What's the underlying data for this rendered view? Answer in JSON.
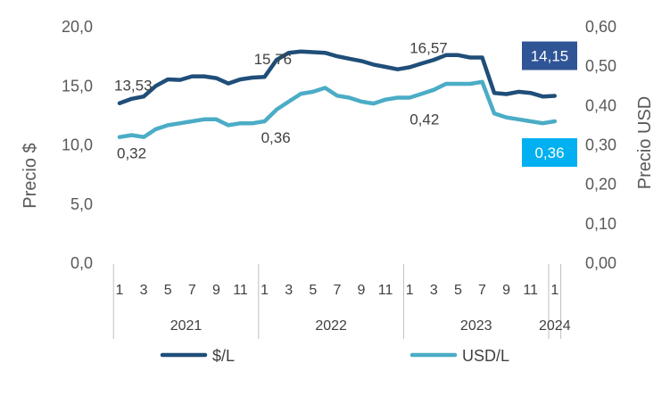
{
  "chart_data": {
    "type": "line",
    "y_left": {
      "label": "Precio $",
      "ticks": [
        "0,0",
        "5,0",
        "10,0",
        "15,0",
        "20,0"
      ],
      "range": [
        0,
        20
      ]
    },
    "y_right": {
      "label": "Precio USD",
      "ticks": [
        "0,00",
        "0,10",
        "0,20",
        "0,30",
        "0,40",
        "0,50",
        "0,60"
      ],
      "range": [
        0,
        0.6
      ]
    },
    "x_month_ticks": [
      "1",
      "3",
      "5",
      "7",
      "9",
      "11",
      "1",
      "3",
      "5",
      "7",
      "9",
      "11",
      "1",
      "3",
      "5",
      "7",
      "9",
      "11",
      "1"
    ],
    "x_month_index": [
      0,
      2,
      4,
      6,
      8,
      10,
      12,
      14,
      16,
      18,
      20,
      22,
      24,
      26,
      28,
      30,
      32,
      34,
      36
    ],
    "years": [
      "2021",
      "2022",
      "2023",
      "2024"
    ],
    "year_spans": [
      [
        0,
        11
      ],
      [
        12,
        23
      ],
      [
        24,
        35
      ],
      [
        36,
        36
      ]
    ],
    "series": [
      {
        "name": "$/L",
        "axis": "left",
        "color": "#1F4E79",
        "values": [
          13.53,
          13.9,
          14.1,
          15.0,
          15.55,
          15.5,
          15.8,
          15.8,
          15.65,
          15.2,
          15.55,
          15.7,
          15.76,
          17.2,
          17.8,
          17.9,
          17.85,
          17.8,
          17.5,
          17.3,
          17.1,
          16.8,
          16.6,
          16.4,
          16.57,
          16.9,
          17.2,
          17.6,
          17.6,
          17.4,
          17.4,
          14.4,
          14.3,
          14.5,
          14.4,
          14.1,
          14.15
        ]
      },
      {
        "name": "USD/L",
        "axis": "right",
        "color": "#4BACC6",
        "values": [
          0.32,
          0.325,
          0.32,
          0.34,
          0.35,
          0.355,
          0.36,
          0.365,
          0.365,
          0.35,
          0.355,
          0.355,
          0.36,
          0.39,
          0.41,
          0.43,
          0.435,
          0.445,
          0.425,
          0.42,
          0.41,
          0.405,
          0.415,
          0.42,
          0.42,
          0.43,
          0.44,
          0.455,
          0.455,
          0.455,
          0.46,
          0.38,
          0.37,
          0.365,
          0.36,
          0.355,
          0.36
        ]
      }
    ],
    "data_labels": [
      {
        "series": 0,
        "index": 0,
        "text": "13,53"
      },
      {
        "series": 0,
        "index": 12,
        "text": "15,76"
      },
      {
        "series": 0,
        "index": 24,
        "text": "16,57"
      },
      {
        "series": 1,
        "index": 0,
        "text": "0,32"
      },
      {
        "series": 1,
        "index": 12,
        "text": "0,36"
      },
      {
        "series": 1,
        "index": 24,
        "text": "0,42"
      }
    ],
    "callouts": [
      {
        "series": 0,
        "text": "14,15",
        "color": "#2F5597"
      },
      {
        "series": 1,
        "text": "0,36",
        "color": "#00B0F0"
      }
    ],
    "legend": [
      {
        "label": "$/L",
        "color": "#1F4E79"
      },
      {
        "label": "USD/L",
        "color": "#4BACC6"
      }
    ]
  }
}
